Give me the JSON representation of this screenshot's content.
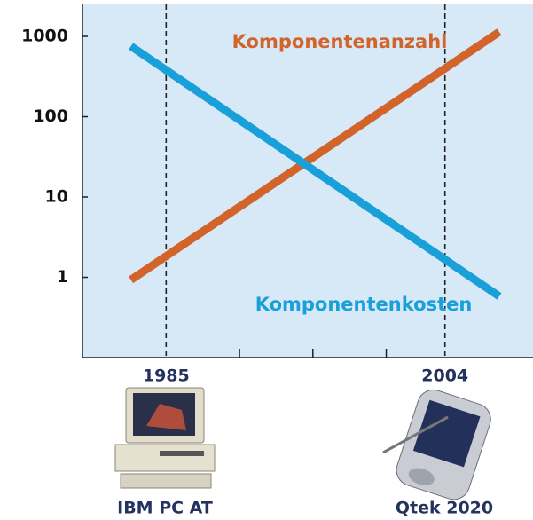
{
  "chart_data": {
    "type": "line",
    "x": [
      1982.6,
      2007.7
    ],
    "series": [
      {
        "name": "Komponentenanzahl",
        "color": "#d2632a",
        "values": [
          0.93,
          1136
        ]
      },
      {
        "name": "Komponentenkosten",
        "color": "#1aa0d8",
        "values": [
          755,
          0.58
        ]
      }
    ],
    "xlim": [
      1979.3,
      2010
    ],
    "xticks": [
      1985,
      2004
    ],
    "xminorticks": [
      1990,
      1995,
      2000
    ],
    "ylim": [
      0.1,
      2500
    ],
    "yticks": [
      1,
      10,
      100,
      1000
    ],
    "log_scale": "y",
    "xgrid": true,
    "background": "#d7e9f6"
  },
  "captions": [
    "IBM PC AT",
    "Qtek 2020"
  ]
}
